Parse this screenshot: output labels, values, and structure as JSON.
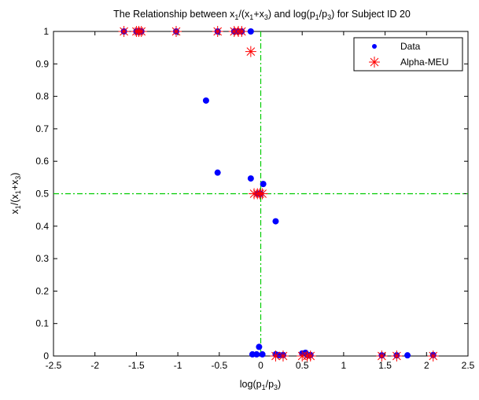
{
  "chart_data": {
    "type": "scatter",
    "title": {
      "prefix": "The Relationship between x",
      "sub1": "1",
      "mid1": "/(x",
      "sub2": "1",
      "mid2": "+x",
      "sub3": "3",
      "mid3": ") and log(p",
      "sub4": "1",
      "mid4": "/p",
      "sub5": "3",
      "suffix": ") for Subject ID 20"
    },
    "xlabel": {
      "a": "log(p",
      "s1": "1",
      "b": "/p",
      "s2": "3",
      "c": ")"
    },
    "ylabel": {
      "a": "x",
      "s1": "1",
      "b": "/(x",
      "s2": "1",
      "c": "+x",
      "s3": "3",
      "d": ")"
    },
    "xlim": [
      -2.5,
      2.5
    ],
    "ylim": [
      0,
      1
    ],
    "xticks": [
      -2.5,
      -2,
      -1.5,
      -1,
      -0.5,
      0,
      0.5,
      1,
      1.5,
      2,
      2.5
    ],
    "yticks": [
      0,
      0.1,
      0.2,
      0.3,
      0.4,
      0.5,
      0.6,
      0.7,
      0.8,
      0.9,
      1
    ],
    "xtick_labels": [
      "-2.5",
      "-2",
      "-1.5",
      "-1",
      "-0.5",
      "0",
      "0.5",
      "1",
      "1.5",
      "2",
      "2.5"
    ],
    "ytick_labels": [
      "0",
      "0.1",
      "0.2",
      "0.3",
      "0.4",
      "0.5",
      "0.6",
      "0.7",
      "0.8",
      "0.9",
      "1"
    ],
    "reference_lines": [
      {
        "orientation": "vertical",
        "value": 0,
        "color": "#00cc00",
        "style": "dash-dot"
      },
      {
        "orientation": "horizontal",
        "value": 0.5,
        "color": "#00cc00",
        "style": "dash-dot"
      }
    ],
    "legend": {
      "position": "top-right"
    },
    "series": [
      {
        "name": "Data",
        "marker": "dot",
        "color": "#0000ff",
        "points": [
          [
            -1.65,
            1
          ],
          [
            -1.5,
            1
          ],
          [
            -1.47,
            1
          ],
          [
            -1.44,
            1
          ],
          [
            -1.02,
            1
          ],
          [
            -0.52,
            1
          ],
          [
            -0.32,
            1
          ],
          [
            -0.27,
            1
          ],
          [
            -0.23,
            1
          ],
          [
            -0.12,
            1
          ],
          [
            -0.66,
            0.787
          ],
          [
            -0.52,
            0.565
          ],
          [
            -0.12,
            0.547
          ],
          [
            0.03,
            0.53
          ],
          [
            0.18,
            0.415
          ],
          [
            -0.04,
            0.5
          ],
          [
            0.0,
            0.5
          ],
          [
            -0.1,
            0.005
          ],
          [
            -0.05,
            0.005
          ],
          [
            -0.02,
            0.028
          ],
          [
            0.02,
            0.005
          ],
          [
            0.18,
            0.005
          ],
          [
            0.22,
            0.003
          ],
          [
            0.27,
            0.003
          ],
          [
            0.5,
            0.008
          ],
          [
            0.54,
            0.01
          ],
          [
            0.56,
            0.003
          ],
          [
            0.6,
            0.003
          ],
          [
            1.46,
            0.002
          ],
          [
            1.64,
            0.002
          ],
          [
            1.77,
            0.002
          ],
          [
            2.08,
            0.003
          ]
        ]
      },
      {
        "name": "Alpha-MEU",
        "marker": "asterisk",
        "color": "#ff0000",
        "points": [
          [
            -1.65,
            1
          ],
          [
            -1.5,
            1
          ],
          [
            -1.47,
            1
          ],
          [
            -1.44,
            1
          ],
          [
            -1.02,
            1
          ],
          [
            -0.52,
            1
          ],
          [
            -0.32,
            1
          ],
          [
            -0.27,
            1
          ],
          [
            -0.23,
            1
          ],
          [
            -0.12,
            0.938
          ],
          [
            -0.08,
            0.5
          ],
          [
            -0.04,
            0.5
          ],
          [
            -0.01,
            0.5
          ],
          [
            0.02,
            0.5
          ],
          [
            0.18,
            0
          ],
          [
            0.27,
            0
          ],
          [
            0.5,
            0
          ],
          [
            0.56,
            0
          ],
          [
            0.6,
            0
          ],
          [
            1.46,
            0
          ],
          [
            1.64,
            0
          ],
          [
            2.08,
            0
          ]
        ]
      }
    ]
  }
}
